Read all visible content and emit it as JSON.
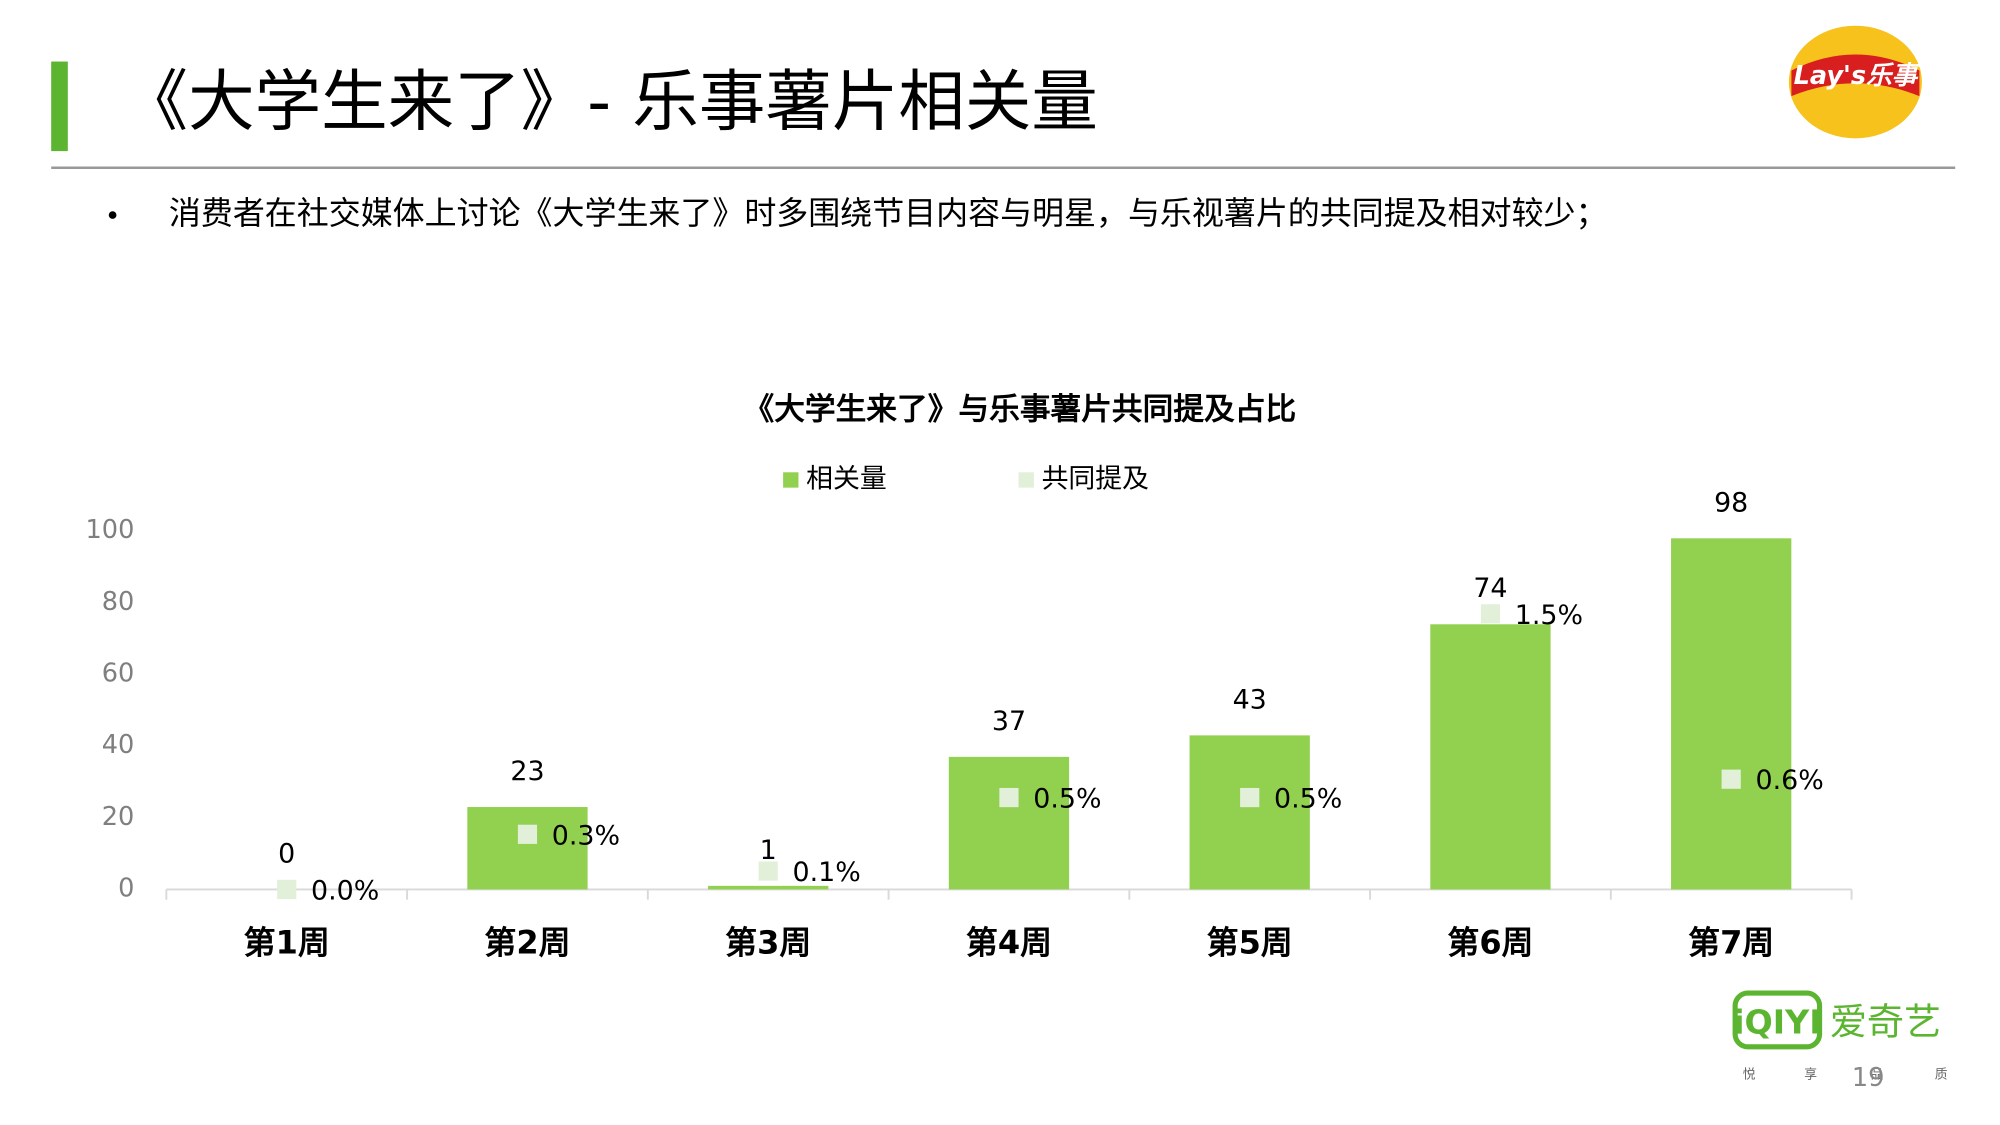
{
  "header": {
    "title": "《大学生来了》- 乐事薯片相关量",
    "bullet": "消费者在社交媒体上讨论《大学生来了》时多围绕节目内容与明星，与乐视薯片的共同提及相对较少；"
  },
  "logos": {
    "brand": "Lay's乐事",
    "platform": "iQIYI",
    "platform_cn": "爱奇艺",
    "slogan": [
      "悦",
      "享",
      "品",
      "质"
    ]
  },
  "page_number": "19",
  "chart_data": {
    "type": "bar",
    "title": "《大学生来了》与乐事薯片共同提及占比",
    "categories": [
      "第1周",
      "第2周",
      "第3周",
      "第4周",
      "第5周",
      "第6周",
      "第7周"
    ],
    "series": [
      {
        "name": "相关量",
        "color": "#92d050",
        "values": [
          0,
          23,
          1,
          37,
          43,
          74,
          98
        ]
      },
      {
        "name": "共同提及",
        "color": "#e2f0d9",
        "type": "scatter",
        "axis": "y2",
        "values": [
          0,
          0.3,
          0.1,
          0.5,
          0.5,
          1.5,
          0.6
        ],
        "value_labels": [
          "0.0%",
          "0.3%",
          "0.1%",
          "0.5%",
          "0.5%",
          "1.5%",
          "0.6%"
        ]
      }
    ],
    "ylim": [
      0,
      100
    ],
    "yticks": [
      0,
      20,
      40,
      60,
      80,
      100
    ],
    "y2lim": [
      0,
      1.95
    ],
    "grid": false
  }
}
